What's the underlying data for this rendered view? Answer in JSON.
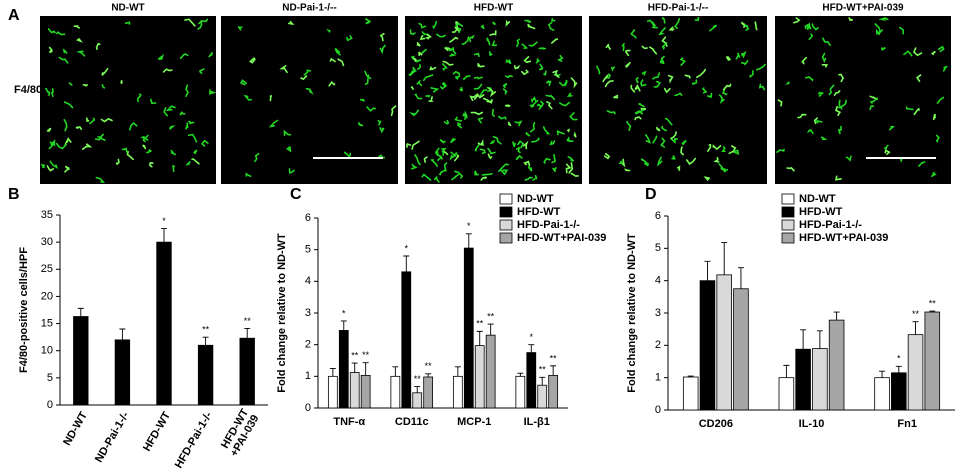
{
  "panel_a": {
    "label": "A",
    "row_label": "F4/80",
    "titles": [
      "ND-WT",
      "ND-Pai-1-/--",
      "HFD-WT",
      "HFD-Pai-1-/--",
      "HFD-WT+PAI-039"
    ]
  },
  "chart_data": [
    {
      "type": "bar",
      "panel_label": "B",
      "ylabel": "F4/80-positive cells/HPF",
      "categories": [
        "ND-WT",
        "ND-Pai-1-/-",
        "HFD-WT",
        "HFD-Pai-1-/-",
        "HFD-WT\n+PAI-039"
      ],
      "values": [
        16.3,
        12,
        30,
        11,
        12.3
      ],
      "errors": [
        1.5,
        2,
        2.5,
        1.5,
        1.8
      ],
      "annotations": [
        null,
        null,
        "*",
        "**",
        "**"
      ],
      "color": "#000000",
      "ylim": [
        0,
        35
      ],
      "yticks": [
        0,
        5,
        10,
        15,
        20,
        25,
        30,
        35
      ]
    },
    {
      "type": "grouped_bar",
      "panel_label": "C",
      "ylabel": "Fold change relative to ND-WT",
      "categories": [
        "TNF-α",
        "CD11c",
        "MCP-1",
        "IL-β1"
      ],
      "series": [
        {
          "name": "ND-WT",
          "color": "#ffffff",
          "values": [
            1,
            1,
            1,
            1
          ],
          "errors": [
            0.25,
            0.3,
            0.3,
            0.1
          ],
          "annotations": [
            null,
            null,
            null,
            null
          ]
        },
        {
          "name": "HFD-WT",
          "color": "#000000",
          "values": [
            2.45,
            4.3,
            5.05,
            1.75
          ],
          "errors": [
            0.3,
            0.5,
            0.45,
            0.25
          ],
          "annotations": [
            "*",
            "*",
            "*",
            "*"
          ]
        },
        {
          "name": "HFD-Pai-1-/-",
          "color": "#d9d9d9",
          "values": [
            1.12,
            0.48,
            1.97,
            0.72
          ],
          "errors": [
            0.3,
            0.2,
            0.45,
            0.25
          ],
          "annotations": [
            "**",
            "**",
            "**",
            "**"
          ]
        },
        {
          "name": "HFD-WT+PAI-039",
          "color": "#a6a6a6",
          "values": [
            1.03,
            0.98,
            2.3,
            1.03
          ],
          "errors": [
            0.4,
            0.1,
            0.35,
            0.3
          ],
          "annotations": [
            "**",
            "**",
            "**",
            "**"
          ]
        }
      ],
      "ylim": [
        0,
        6
      ],
      "yticks": [
        0,
        1,
        2,
        3,
        4,
        5,
        6
      ],
      "legend": "top-right"
    },
    {
      "type": "grouped_bar",
      "panel_label": "D",
      "ylabel": "Fold change relative to ND-WT",
      "categories": [
        "CD206",
        "IL-10",
        "Fn1"
      ],
      "series": [
        {
          "name": "ND-WT",
          "color": "#ffffff",
          "values": [
            1.02,
            1,
            1
          ],
          "errors": [
            0.03,
            0.38,
            0.2
          ],
          "annotations": [
            null,
            null,
            null
          ]
        },
        {
          "name": "HFD-WT",
          "color": "#000000",
          "values": [
            4,
            1.88,
            1.15
          ],
          "errors": [
            0.6,
            0.6,
            0.2
          ],
          "annotations": [
            null,
            null,
            "*"
          ]
        },
        {
          "name": "HFD-Pai-1-/-",
          "color": "#d9d9d9",
          "values": [
            4.18,
            1.9,
            2.33
          ],
          "errors": [
            1,
            0.55,
            0.4
          ],
          "annotations": [
            null,
            null,
            "**"
          ]
        },
        {
          "name": "HFD-WT+PAI-039",
          "color": "#a6a6a6",
          "values": [
            3.75,
            2.78,
            3.03
          ],
          "errors": [
            0.65,
            0.25,
            0.03
          ],
          "annotations": [
            null,
            null,
            "**"
          ]
        }
      ],
      "ylim": [
        0,
        6
      ],
      "yticks": [
        0,
        1,
        2,
        3,
        4,
        5,
        6
      ],
      "legend": "top-right"
    }
  ]
}
